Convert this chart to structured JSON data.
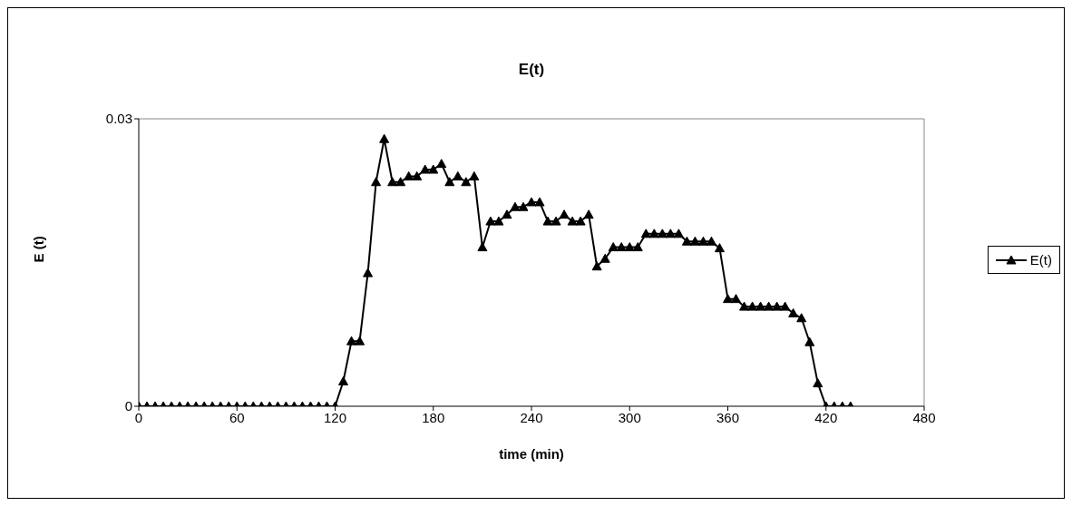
{
  "chart_data": {
    "type": "line",
    "title": "E(t)",
    "xlabel": "time (min)",
    "ylabel": "E (t)",
    "x": [
      0,
      5,
      10,
      15,
      20,
      25,
      30,
      35,
      40,
      45,
      50,
      55,
      60,
      65,
      70,
      75,
      80,
      85,
      90,
      95,
      100,
      105,
      110,
      115,
      120,
      125,
      130,
      135,
      140,
      145,
      150,
      155,
      160,
      165,
      170,
      175,
      180,
      185,
      190,
      195,
      200,
      205,
      210,
      215,
      220,
      225,
      230,
      235,
      240,
      245,
      250,
      255,
      260,
      265,
      270,
      275,
      280,
      285,
      290,
      295,
      300,
      305,
      310,
      315,
      320,
      325,
      330,
      335,
      340,
      345,
      350,
      355,
      360,
      365,
      370,
      375,
      380,
      385,
      390,
      395,
      400,
      405,
      410,
      415,
      420,
      425,
      430,
      435
    ],
    "series": [
      {
        "name": "E(t)",
        "color": "#000000",
        "values": [
          0,
          0,
          0,
          0,
          0,
          0,
          0,
          0,
          0,
          0,
          0,
          0,
          0,
          0,
          0,
          0,
          0,
          0,
          0,
          0,
          0,
          0,
          0,
          0,
          0,
          0.0026,
          0.0068,
          0.0068,
          0.0139,
          0.0234,
          0.0279,
          0.0234,
          0.0234,
          0.024,
          0.024,
          0.0247,
          0.0247,
          0.0253,
          0.0234,
          0.024,
          0.0234,
          0.024,
          0.0166,
          0.0193,
          0.0193,
          0.02,
          0.0208,
          0.0208,
          0.0213,
          0.0213,
          0.0193,
          0.0193,
          0.02,
          0.0193,
          0.0193,
          0.02,
          0.0146,
          0.0154,
          0.0166,
          0.0166,
          0.0166,
          0.0166,
          0.018,
          0.018,
          0.018,
          0.018,
          0.018,
          0.0172,
          0.0172,
          0.0172,
          0.0172,
          0.0165,
          0.0112,
          0.0112,
          0.0104,
          0.0104,
          0.0104,
          0.0104,
          0.0104,
          0.0104,
          0.0097,
          0.0092,
          0.0067,
          0.0024,
          0,
          0,
          0,
          0
        ]
      }
    ],
    "xlim": [
      0,
      480
    ],
    "xticks": [
      0,
      60,
      120,
      180,
      240,
      300,
      360,
      420,
      480
    ],
    "ylim": [
      0,
      0.03
    ],
    "yticks": [
      0,
      0.03
    ],
    "grid": false,
    "legend": "right",
    "marker": "triangle",
    "line_style": "solid"
  }
}
